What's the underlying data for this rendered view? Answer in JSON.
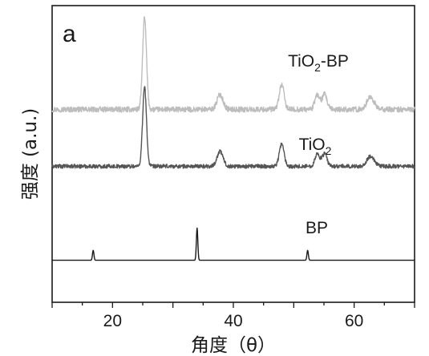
{
  "chart_data": {
    "type": "line",
    "panel_label": "a",
    "xlabel": "角度（θ）",
    "ylabel": "强度 (a.u.)",
    "xlim": [
      10,
      70
    ],
    "x_ticks": [
      20,
      40,
      60
    ],
    "x_tick_labels": [
      "20",
      "40",
      "60"
    ],
    "y_ticks": "none",
    "grid": false,
    "series": [
      {
        "name": "TiO2-BP",
        "label_main": "TiO",
        "label_sub": "2",
        "label_tail": "-BP",
        "color": "#bdbdbd",
        "baseline": 78,
        "noise": 2.2,
        "peaks": [
          {
            "x": 25.3,
            "h": 37,
            "w": 0.32
          },
          {
            "x": 37.8,
            "h": 6,
            "w": 0.5
          },
          {
            "x": 48.0,
            "h": 10,
            "w": 0.4
          },
          {
            "x": 53.9,
            "h": 6,
            "w": 0.4
          },
          {
            "x": 55.1,
            "h": 6,
            "w": 0.4
          },
          {
            "x": 62.7,
            "h": 5,
            "w": 0.6
          }
        ]
      },
      {
        "name": "TiO2",
        "label_main": "TiO",
        "label_sub": "2",
        "label_tail": "",
        "color": "#555555",
        "baseline": 55,
        "noise": 1.6,
        "peaks": [
          {
            "x": 25.3,
            "h": 32,
            "w": 0.32
          },
          {
            "x": 37.8,
            "h": 6,
            "w": 0.5
          },
          {
            "x": 48.0,
            "h": 9,
            "w": 0.4
          },
          {
            "x": 53.9,
            "h": 5,
            "w": 0.4
          },
          {
            "x": 55.1,
            "h": 5,
            "w": 0.4
          },
          {
            "x": 62.7,
            "h": 4,
            "w": 0.6
          }
        ]
      },
      {
        "name": "BP",
        "label_main": "BP",
        "label_sub": "",
        "label_tail": "",
        "color": "#1a1a1a",
        "baseline": 17,
        "noise": 0,
        "peaks": [
          {
            "x": 16.8,
            "h": 4,
            "w": 0.12
          },
          {
            "x": 34.0,
            "h": 13,
            "w": 0.12
          },
          {
            "x": 52.3,
            "h": 4,
            "w": 0.12
          }
        ]
      }
    ],
    "ylim": [
      0,
      120
    ]
  }
}
